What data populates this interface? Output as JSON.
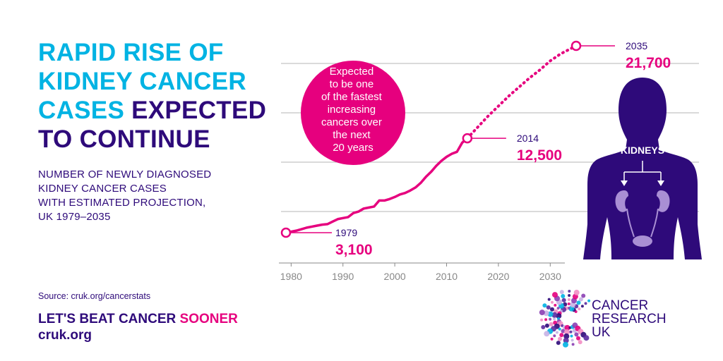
{
  "title": {
    "part1": "RAPID RISE OF KIDNEY CANCER CASES",
    "part2": "EXPECTED TO CONTINUE"
  },
  "subtitle": [
    "NUMBER OF NEWLY DIAGNOSED",
    "KIDNEY CANCER CASES",
    "WITH ESTIMATED PROJECTION,",
    "UK 1979–2035"
  ],
  "callout": [
    "Expected",
    "to be one",
    "of the fastest",
    "increasing",
    "cancers over",
    "the next",
    "20 years"
  ],
  "body_label": "KIDNEYS",
  "source": "Source: cruk.org/cancerstats",
  "slogan": {
    "main": "LET'S BEAT CANCER",
    "accent": "SOONER"
  },
  "site": "cruk.org",
  "brand": [
    "CANCER",
    "RESEARCH",
    "UK"
  ],
  "colors": {
    "pink": "#e6007e",
    "navy": "#2e0a7a",
    "cyan": "#00b3e3",
    "grid": "#b5b5b5",
    "axis": "#888888"
  },
  "chart_data": {
    "type": "line",
    "x_ticks": [
      1980,
      1990,
      2000,
      2010,
      2020,
      2030
    ],
    "xlim": [
      1979,
      2037
    ],
    "ylim": [
      2000,
      22500
    ],
    "grid": true,
    "series": [
      {
        "style": "solid",
        "x": [
          1979,
          1980,
          1981,
          1982,
          1983,
          1984,
          1985,
          1986,
          1987,
          1988,
          1989,
          1990,
          1991,
          1992,
          1993,
          1994,
          1995,
          1996,
          1997,
          1998,
          1999,
          2000,
          2001,
          2002,
          2003,
          2004,
          2005,
          2006,
          2007,
          2008,
          2009,
          2010,
          2011,
          2012,
          2013,
          2014
        ],
        "values": [
          3100,
          3200,
          3300,
          3450,
          3600,
          3700,
          3800,
          3900,
          3950,
          4200,
          4450,
          4550,
          4650,
          5050,
          5200,
          5500,
          5600,
          5700,
          6300,
          6300,
          6450,
          6650,
          6900,
          7050,
          7300,
          7600,
          8050,
          8650,
          9150,
          9750,
          10250,
          10650,
          10950,
          11150,
          12050,
          12500
        ]
      },
      {
        "style": "dashed",
        "x": [
          2014,
          2016,
          2018,
          2020,
          2022,
          2024,
          2026,
          2028,
          2030,
          2032,
          2035
        ],
        "values": [
          12500,
          13600,
          14700,
          15700,
          16700,
          17600,
          18500,
          19300,
          20200,
          20900,
          21700
        ]
      }
    ],
    "annotations": [
      {
        "year": "1979",
        "value": "3,100",
        "x": 1979,
        "y": 3100
      },
      {
        "year": "2014",
        "value": "12,500",
        "x": 2014,
        "y": 12500
      },
      {
        "year": "2035",
        "value": "21,700",
        "x": 2035,
        "y": 21700
      }
    ]
  }
}
